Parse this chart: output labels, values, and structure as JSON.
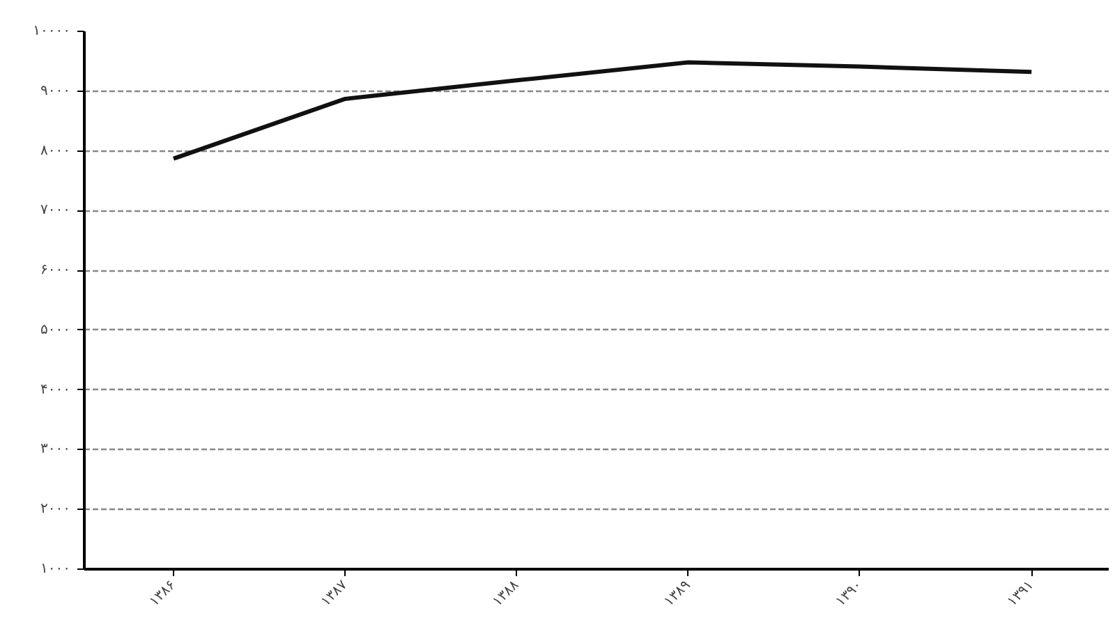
{
  "chart_data": {
    "type": "line",
    "categories": [
      "۱۳۸۶",
      "۱۳۸۷",
      "۱۳۸۸",
      "۱۳۸۹",
      "۱۳۹۰",
      "۱۳۹۱"
    ],
    "series": [
      {
        "color": "#111111",
        "values": [
          7870,
          8870,
          9180,
          9480,
          9410,
          9320
        ]
      }
    ],
    "ylim": [
      1000,
      10000
    ],
    "yticks": [
      {
        "value": 1000,
        "label": "۱۰۰۰"
      },
      {
        "value": 2000,
        "label": "۲۰۰۰"
      },
      {
        "value": 3000,
        "label": "۳۰۰۰"
      },
      {
        "value": 4000,
        "label": "۴۰۰۰"
      },
      {
        "value": 5000,
        "label": "۵۰۰۰"
      },
      {
        "value": 6000,
        "label": "۶۰۰۰"
      },
      {
        "value": 7000,
        "label": "۷۰۰۰"
      },
      {
        "value": 8000,
        "label": "۸۰۰۰"
      },
      {
        "value": 9000,
        "label": "۹۰۰۰"
      },
      {
        "value": 10000,
        "label": "۱۰۰۰۰"
      }
    ],
    "grid": "y",
    "marker": "none",
    "line_style": "solid"
  }
}
